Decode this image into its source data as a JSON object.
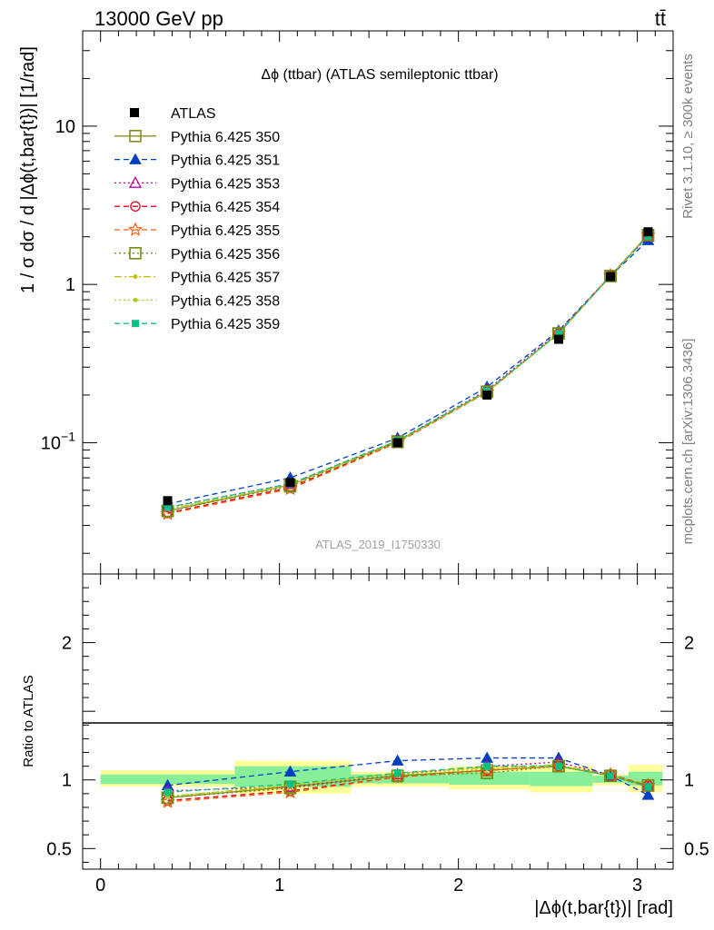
{
  "header": {
    "energy_label": "13000 GeV pp",
    "process_label": "tt̄",
    "plot_title": "Δϕ (ttbar) (ATLAS semileptonic ttbar)",
    "analysis_id": "ATLAS_2019_I1750330",
    "side_label_rivet": "Rivet 3.1.10, ≥ 300k events",
    "side_label_mcplots": "mcplots.cern.ch [arXiv:1306.3436]"
  },
  "chart_data": [
    {
      "type": "line",
      "title": "Δϕ (ttbar) (ATLAS semileptonic ttbar)",
      "ylabel": "1 / σ dσ / d |Δϕ(t,bar{t})| [1/rad]",
      "xlabel": "",
      "y_scale": "log",
      "xlim": [
        -0.1,
        3.2
      ],
      "ylim": [
        0.0148,
        40
      ],
      "y_ticks": [
        {
          "v": 0.1,
          "label": "10^-1"
        },
        {
          "v": 1,
          "label": "1"
        },
        {
          "v": 10,
          "label": "10"
        }
      ],
      "x": [
        0.375,
        1.06,
        1.66,
        2.16,
        2.56,
        2.85,
        3.06
      ],
      "data": {
        "name": "ATLAS",
        "values": [
          0.043,
          0.056,
          0.1,
          0.2,
          0.45,
          1.12,
          2.15
        ],
        "color": "#000000"
      },
      "legend_position": "top-left",
      "series": [
        {
          "name": "Pythia 6.425 350",
          "color": "#8b8b20",
          "dash": "solid",
          "marker": "square-open",
          "values": [
            0.037,
            0.054,
            0.102,
            0.21,
            0.49,
            1.13,
            2.05
          ]
        },
        {
          "name": "Pythia 6.425 351",
          "color": "#0040c0",
          "dash": "dashed",
          "marker": "triangle-filled",
          "values": [
            0.041,
            0.06,
            0.107,
            0.225,
            0.51,
            1.13,
            1.9
          ]
        },
        {
          "name": "Pythia 6.425 353",
          "color": "#c000a0",
          "dash": "dotted",
          "marker": "triangle-open",
          "values": [
            0.039,
            0.055,
            0.103,
            0.215,
            0.5,
            1.14,
            2.0
          ]
        },
        {
          "name": "Pythia 6.425 354",
          "color": "#e00020",
          "dash": "dashed",
          "marker": "circle-open",
          "values": [
            0.036,
            0.052,
            0.101,
            0.21,
            0.49,
            1.14,
            2.05
          ]
        },
        {
          "name": "Pythia 6.425 355",
          "color": "#f06010",
          "dash": "dashed",
          "marker": "star-open",
          "values": [
            0.0355,
            0.051,
            0.1,
            0.208,
            0.49,
            1.14,
            2.05
          ]
        },
        {
          "name": "Pythia 6.425 356",
          "color": "#709010",
          "dash": "dotted",
          "marker": "square-open",
          "values": [
            0.037,
            0.053,
            0.101,
            0.21,
            0.49,
            1.13,
            2.05
          ]
        },
        {
          "name": "Pythia 6.425 357",
          "color": "#c8c000",
          "dash": "dashdot",
          "marker": "dot",
          "values": [
            0.038,
            0.054,
            0.102,
            0.21,
            0.49,
            1.13,
            2.03
          ]
        },
        {
          "name": "Pythia 6.425 358",
          "color": "#a0d020",
          "dash": "dotted",
          "marker": "dot",
          "values": [
            0.038,
            0.054,
            0.101,
            0.21,
            0.49,
            1.13,
            2.03
          ]
        },
        {
          "name": "Pythia 6.425 359",
          "color": "#10c080",
          "dash": "dashed",
          "marker": "square-small",
          "values": [
            0.039,
            0.055,
            0.103,
            0.212,
            0.49,
            1.13,
            2.02
          ]
        }
      ]
    },
    {
      "type": "line",
      "ylabel": "Ratio to ATLAS",
      "xlabel": "|Δϕ(t,bar{t})| [rad]",
      "xlim": [
        -0.1,
        3.2
      ],
      "ylim": [
        0.35,
        2.5
      ],
      "x_ticks": [
        0,
        1,
        2,
        3
      ],
      "y_ticks": [
        0.5,
        1,
        2
      ],
      "reference_line": 1,
      "bins": [
        {
          "x": [
            0.0,
            0.75
          ],
          "stat": [
            0.97,
            1.04
          ],
          "total": [
            0.95,
            1.07
          ]
        },
        {
          "x": [
            0.75,
            1.4
          ],
          "stat": [
            0.95,
            1.1
          ],
          "total": [
            0.9,
            1.14
          ]
        },
        {
          "x": [
            1.4,
            1.95
          ],
          "stat": [
            0.975,
            1.04
          ],
          "total": [
            0.95,
            1.06
          ]
        },
        {
          "x": [
            1.95,
            2.4
          ],
          "stat": [
            0.965,
            1.06
          ],
          "total": [
            0.93,
            1.1
          ]
        },
        {
          "x": [
            2.4,
            2.75
          ],
          "stat": [
            0.955,
            1.06
          ],
          "total": [
            0.91,
            1.1
          ]
        },
        {
          "x": [
            2.75,
            2.95
          ],
          "stat": [
            0.98,
            1.03
          ],
          "total": [
            0.96,
            1.04
          ]
        },
        {
          "x": [
            2.95,
            3.14
          ],
          "stat": [
            0.96,
            1.06
          ],
          "total": [
            0.91,
            1.11
          ]
        }
      ],
      "x": [
        0.375,
        1.06,
        1.66,
        2.16,
        2.56,
        2.85,
        3.06
      ],
      "series": [
        {
          "name": "Pythia 6.425 350",
          "values": [
            0.87,
            0.95,
            1.03,
            1.07,
            1.1,
            1.03,
            0.96
          ]
        },
        {
          "name": "Pythia 6.425 351",
          "values": [
            0.96,
            1.06,
            1.14,
            1.16,
            1.16,
            1.03,
            0.89
          ]
        },
        {
          "name": "Pythia 6.425 353",
          "values": [
            0.92,
            0.95,
            1.04,
            1.1,
            1.13,
            1.03,
            0.95
          ]
        },
        {
          "name": "Pythia 6.425 354",
          "values": [
            0.85,
            0.92,
            1.02,
            1.07,
            1.1,
            1.04,
            0.96
          ]
        },
        {
          "name": "Pythia 6.425 355",
          "values": [
            0.84,
            0.91,
            1.02,
            1.07,
            1.1,
            1.04,
            0.96
          ]
        },
        {
          "name": "Pythia 6.425 356",
          "values": [
            0.87,
            0.94,
            1.03,
            1.05,
            1.1,
            1.03,
            0.96
          ]
        },
        {
          "name": "Pythia 6.425 357",
          "values": [
            0.88,
            0.96,
            1.05,
            1.09,
            1.11,
            1.03,
            0.95
          ]
        },
        {
          "name": "Pythia 6.425 358",
          "values": [
            0.88,
            0.96,
            1.04,
            1.08,
            1.1,
            1.03,
            0.95
          ]
        },
        {
          "name": "Pythia 6.425 359",
          "values": [
            0.91,
            0.97,
            1.05,
            1.1,
            1.1,
            1.03,
            0.95
          ]
        }
      ]
    }
  ]
}
